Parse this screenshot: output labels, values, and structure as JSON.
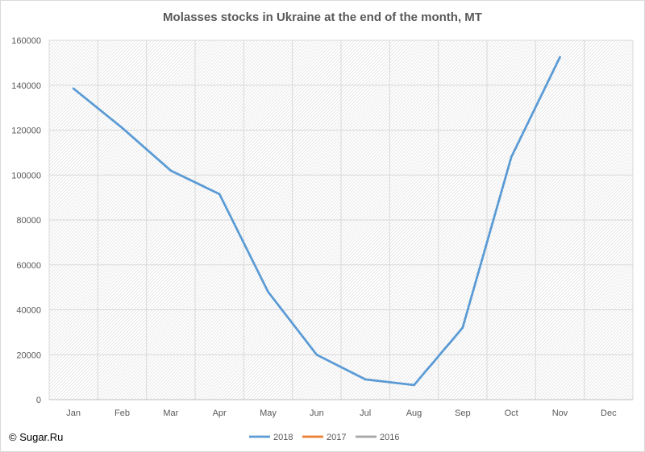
{
  "title": "Molasses stocks in Ukraine at the end of the month, MT",
  "credit": "© Sugar.Ru",
  "chart_data": {
    "type": "line",
    "title": "Molasses stocks in Ukraine at the end of the month, MT",
    "xlabel": "",
    "ylabel": "",
    "categories": [
      "Jan",
      "Feb",
      "Mar",
      "Apr",
      "May",
      "Jun",
      "Jul",
      "Aug",
      "Sep",
      "Oct",
      "Nov",
      "Dec"
    ],
    "ylim": [
      0,
      160000
    ],
    "yticks": [
      "0",
      "20000",
      "40000",
      "60000",
      "80000",
      "100000",
      "120000",
      "140000",
      "160000"
    ],
    "grid": true,
    "legend_position": "bottom",
    "series": [
      {
        "name": "2018",
        "color": "#5b9bd5",
        "values": [
          138500,
          121000,
          102000,
          91500,
          48000,
          20000,
          9000,
          6500,
          32000,
          108000,
          152500,
          null
        ]
      },
      {
        "name": "2017",
        "color": "#ed7d31",
        "values": [
          null,
          null,
          null,
          null,
          null,
          null,
          null,
          null,
          null,
          null,
          null,
          null
        ]
      },
      {
        "name": "2016",
        "color": "#a5a5a5",
        "values": [
          null,
          null,
          null,
          null,
          null,
          null,
          null,
          null,
          null,
          null,
          null,
          null
        ]
      }
    ]
  }
}
